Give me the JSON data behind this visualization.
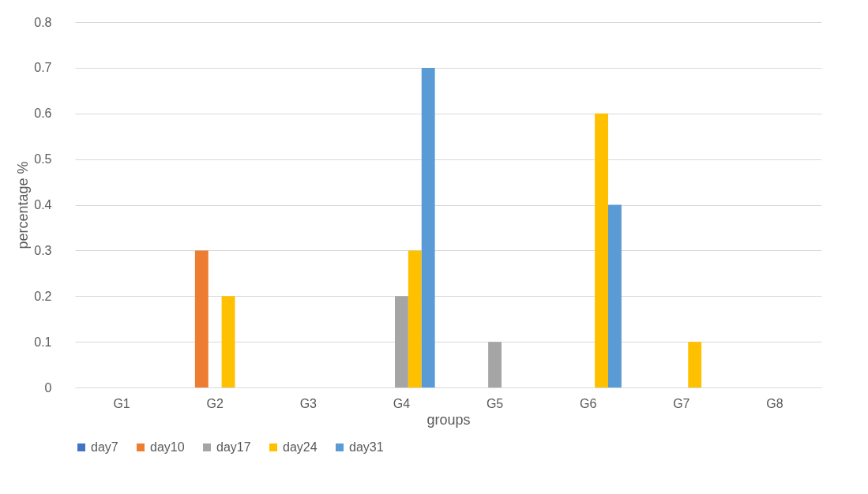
{
  "chart_data": {
    "type": "bar",
    "xlabel": "groups",
    "ylabel": "percentage %",
    "categories": [
      "G1",
      "G2",
      "G3",
      "G4",
      "G5",
      "G6",
      "G7",
      "G8"
    ],
    "series": [
      {
        "name": "day7",
        "color": "#4472c4",
        "values": [
          0,
          0,
          0,
          0,
          0,
          0,
          0,
          0
        ]
      },
      {
        "name": "day10",
        "color": "#ed7d31",
        "values": [
          0,
          0.3,
          0,
          0,
          0,
          0,
          0,
          0
        ]
      },
      {
        "name": "day17",
        "color": "#a5a5a5",
        "values": [
          0,
          0,
          0,
          0.2,
          0.1,
          0,
          0,
          0
        ]
      },
      {
        "name": "day24",
        "color": "#ffc000",
        "values": [
          0,
          0.2,
          0,
          0.3,
          0,
          0.6,
          0.1,
          0
        ]
      },
      {
        "name": "day31",
        "color": "#5b9bd5",
        "values": [
          0,
          0,
          0,
          0.7,
          0,
          0.4,
          0,
          0
        ]
      }
    ],
    "ylim": [
      0,
      0.8
    ],
    "yticks": [
      0,
      0.1,
      0.2,
      0.3,
      0.4,
      0.5,
      0.6,
      0.7,
      0.8
    ],
    "grid": "y",
    "legend": "bottom"
  }
}
